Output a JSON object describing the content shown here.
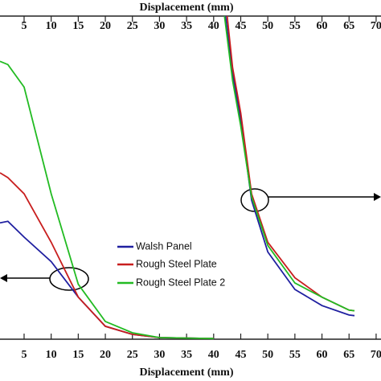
{
  "chart_data": {
    "type": "line",
    "top_xlabel": "Displacement (mm)",
    "xlabel": "Displacement (mm)",
    "xlim": [
      0.55,
      70.9
    ],
    "xticks": [
      5,
      10,
      15,
      20,
      25,
      30,
      35,
      40,
      45,
      50,
      55,
      60,
      65,
      70
    ],
    "ylim": [
      0,
      100
    ],
    "series": [
      {
        "name": "Walsh Panel",
        "color": "#1f1fa0",
        "x": [
          0.55,
          2,
          5,
          10,
          15,
          20,
          25,
          30,
          40,
          null,
          42.2,
          43.5,
          45,
          47,
          50,
          55,
          60,
          65,
          66
        ],
        "values": [
          36,
          36.5,
          31.6,
          24,
          13,
          4,
          1.5,
          0.5,
          0.2,
          null,
          100,
          82,
          68,
          43,
          27,
          15.4,
          10.4,
          7.5,
          7.3
        ]
      },
      {
        "name": "Rough Steel Plate",
        "color": "#c81e1e",
        "x": [
          0.55,
          2,
          5,
          10,
          15,
          20,
          25,
          30,
          40,
          null,
          42.5,
          43.5,
          45,
          47,
          50,
          55,
          60,
          65,
          66
        ],
        "values": [
          51.5,
          50,
          45,
          30,
          13,
          4,
          1.5,
          0.5,
          0.2,
          null,
          100,
          84,
          70,
          45,
          30,
          19,
          13,
          9,
          8.8
        ]
      },
      {
        "name": "Rough Steel Plate 2",
        "color": "#22bb22",
        "x": [
          0.55,
          2,
          5,
          10,
          15,
          20,
          25,
          30,
          40,
          null,
          42,
          43.5,
          45,
          47,
          50,
          55,
          60,
          65,
          66
        ],
        "values": [
          86,
          85,
          78,
          45,
          17,
          5.5,
          2,
          0.5,
          0.2,
          null,
          100,
          80,
          66,
          44,
          29,
          17.4,
          13,
          9,
          8.8
        ]
      }
    ]
  }
}
